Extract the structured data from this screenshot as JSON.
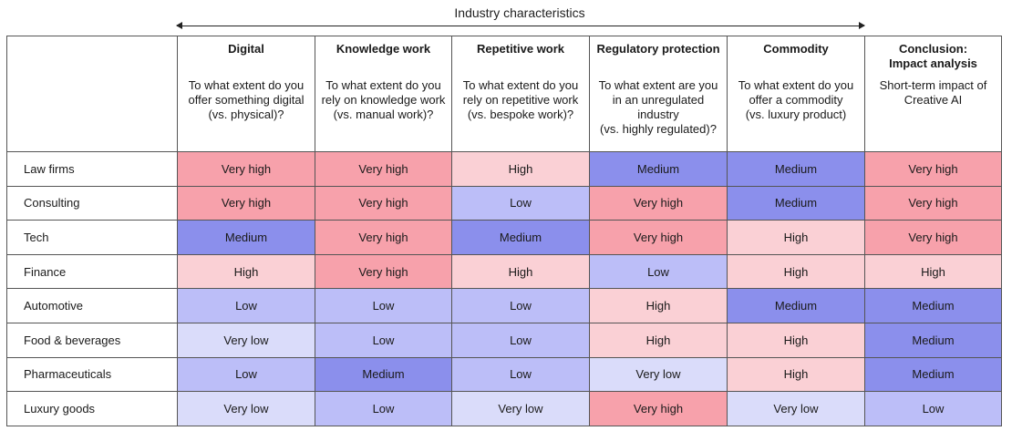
{
  "header": {
    "top_label": "Industry characteristics"
  },
  "columns": [
    {
      "title": "Digital",
      "description": "To what extent do you offer something digital (vs. physical)?"
    },
    {
      "title": "Knowledge work",
      "description": "To what extent do you rely on knowledge work\n(vs. manual work)?"
    },
    {
      "title": "Repetitive work",
      "description": "To what extent do you rely on repetitive work (vs. bespoke work)?"
    },
    {
      "title": "Regulatory protection",
      "description": "To what extent are you in an unregulated industry\n(vs. highly regulated)?"
    },
    {
      "title": "Commodity",
      "description": "To what extent do you offer a commodity\n(vs. luxury product)"
    },
    {
      "title": "Conclusion:\nImpact analysis",
      "description": "Short-term impact of Creative AI"
    }
  ],
  "level_colors": {
    "Very high": "#F7A1AB",
    "High": "#FAD0D5",
    "Medium": "#8B8FEC",
    "Low": "#BCBEF8",
    "Very low": "#DADCFA"
  },
  "rows": [
    {
      "label": "Law firms",
      "values": [
        "Very high",
        "Very high",
        "High",
        "Medium",
        "Medium",
        "Very high"
      ]
    },
    {
      "label": "Consulting",
      "values": [
        "Very high",
        "Very high",
        "Low",
        "Very high",
        "Medium",
        "Very high"
      ]
    },
    {
      "label": "Tech",
      "values": [
        "Medium",
        "Very high",
        "Medium",
        "Very high",
        "High",
        "Very high"
      ]
    },
    {
      "label": "Finance",
      "values": [
        "High",
        "Very high",
        "High",
        "Low",
        "High",
        "High"
      ]
    },
    {
      "label": "Automotive",
      "values": [
        "Low",
        "Low",
        "Low",
        "High",
        "Medium",
        "Medium"
      ]
    },
    {
      "label": "Food & beverages",
      "values": [
        "Very low",
        "Low",
        "Low",
        "High",
        "High",
        "Medium"
      ]
    },
    {
      "label": "Pharmaceuticals",
      "values": [
        "Low",
        "Medium",
        "Low",
        "Very low",
        "High",
        "Medium"
      ]
    },
    {
      "label": "Luxury goods",
      "values": [
        "Very low",
        "Low",
        "Very low",
        "Very high",
        "Very low",
        "Low"
      ]
    }
  ]
}
